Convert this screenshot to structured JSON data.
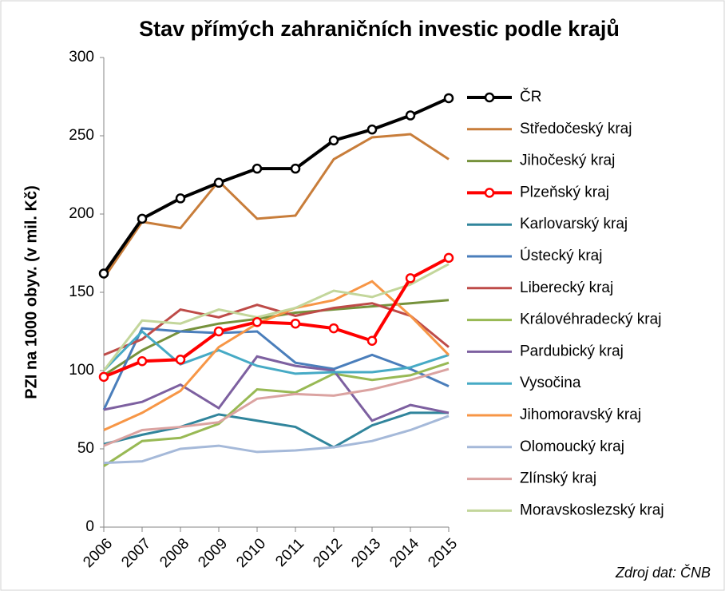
{
  "chart_data": {
    "type": "line",
    "title": "Stav přímých zahraničních investic podle krajů",
    "y_label": "PZI na 1000 obyv. (v mil. Kč)",
    "source": "Zdroj dat: ČNB",
    "categories": [
      "2006",
      "2007",
      "2008",
      "2009",
      "2010",
      "2011",
      "2012",
      "2013",
      "2014",
      "2015"
    ],
    "ylim": [
      0,
      300
    ],
    "yticks": [
      0,
      50,
      100,
      150,
      200,
      250,
      300
    ],
    "legend": "right",
    "series": [
      {
        "name": "ČR",
        "color": "#000000",
        "markers": true,
        "values": [
          162,
          197,
          210,
          220,
          229,
          229,
          247,
          254,
          263,
          274
        ]
      },
      {
        "name": "Středočeský kraj",
        "color": "#c87d3a",
        "values": [
          159,
          195,
          191,
          221,
          197,
          199,
          235,
          249,
          251,
          235
        ]
      },
      {
        "name": "Jihočeský kraj",
        "color": "#76923c",
        "values": [
          97,
          113,
          125,
          130,
          133,
          137,
          139,
          141,
          143,
          145
        ]
      },
      {
        "name": "Plzeňský kraj",
        "color": "#ff0000",
        "markers": true,
        "values": [
          96,
          106,
          107,
          125,
          131,
          130,
          127,
          119,
          159,
          172
        ]
      },
      {
        "name": "Karlovarský kraj",
        "color": "#31859c",
        "values": [
          53,
          59,
          64,
          72,
          68,
          64,
          51,
          65,
          73,
          73
        ]
      },
      {
        "name": "Ústecký kraj",
        "color": "#4a7ebb",
        "values": [
          75,
          127,
          125,
          124,
          125,
          105,
          101,
          110,
          101,
          90
        ]
      },
      {
        "name": "Liberecký kraj",
        "color": "#be4b48",
        "values": [
          110,
          120,
          139,
          134,
          142,
          135,
          140,
          143,
          135,
          115
        ]
      },
      {
        "name": "Královéhradecký kraj",
        "color": "#98b954",
        "values": [
          39,
          55,
          57,
          66,
          88,
          86,
          98,
          94,
          97,
          105
        ]
      },
      {
        "name": "Pardubický kraj",
        "color": "#7d60a0",
        "values": [
          75,
          80,
          91,
          76,
          109,
          103,
          100,
          68,
          78,
          73
        ]
      },
      {
        "name": "Vysočina",
        "color": "#46aac5",
        "values": [
          100,
          125,
          104,
          113,
          103,
          98,
          99,
          99,
          102,
          110
        ]
      },
      {
        "name": "Jihomoravský kraj",
        "color": "#f79646",
        "values": [
          62,
          73,
          87,
          115,
          130,
          140,
          145,
          157,
          135,
          110
        ]
      },
      {
        "name": "Olomoucký kraj",
        "color": "#a5b9d9",
        "values": [
          41,
          42,
          50,
          52,
          48,
          49,
          51,
          55,
          62,
          71
        ]
      },
      {
        "name": "Zlínský kraj",
        "color": "#dba3a1",
        "values": [
          52,
          62,
          64,
          67,
          82,
          85,
          84,
          88,
          94,
          101
        ]
      },
      {
        "name": "Moravskoslezský kraj",
        "color": "#c3d69b",
        "values": [
          100,
          132,
          130,
          139,
          134,
          140,
          151,
          147,
          155,
          168
        ]
      }
    ]
  }
}
